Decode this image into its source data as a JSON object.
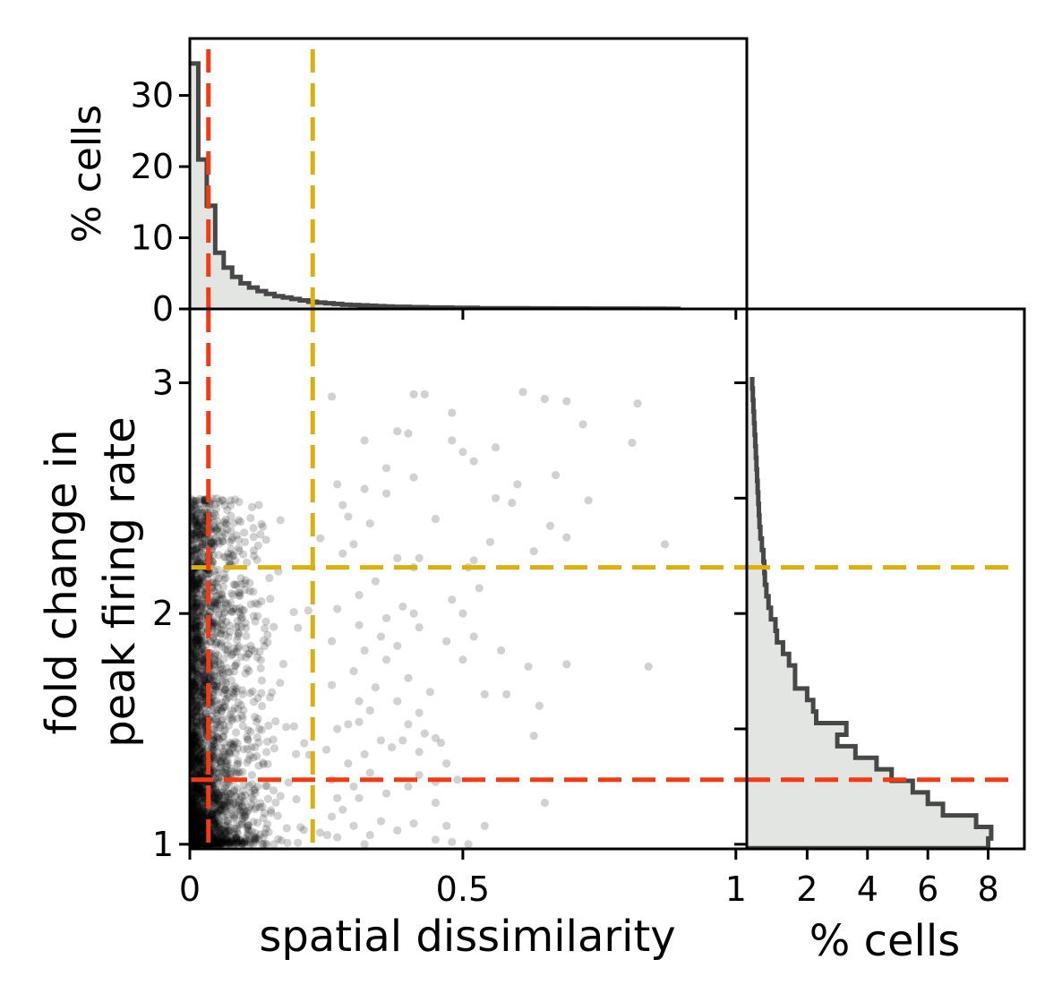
{
  "chart_data": {
    "type": "scatter",
    "main": {
      "xlabel": "spatial dissimilarity",
      "ylabel_lines": [
        "fold change in",
        "peak firing rate"
      ],
      "xlim": [
        0,
        1.02
      ],
      "ylim": [
        0.98,
        3.32
      ],
      "x_ticks": [
        0,
        0.5,
        1
      ],
      "x_tick_labels": [
        "0",
        "0.5",
        "1"
      ],
      "y_ticks": [
        1,
        2,
        3
      ],
      "y_tick_labels": [
        "1",
        "2",
        "3"
      ],
      "point_color": "#000000",
      "point_opacity": 0.18,
      "points": [
        [
          0.43,
          2.95
        ],
        [
          0.41,
          2.95
        ],
        [
          0.26,
          2.94
        ],
        [
          0.61,
          2.96
        ],
        [
          0.65,
          2.93
        ],
        [
          0.69,
          2.92
        ],
        [
          0.82,
          2.91
        ],
        [
          0.48,
          2.87
        ],
        [
          0.72,
          2.82
        ],
        [
          0.38,
          2.79
        ],
        [
          0.32,
          2.75
        ],
        [
          0.48,
          2.75
        ],
        [
          0.81,
          2.74
        ],
        [
          0.56,
          2.72
        ],
        [
          0.5,
          2.7
        ],
        [
          0.4,
          2.78
        ],
        [
          0.52,
          2.66
        ],
        [
          0.36,
          2.63
        ],
        [
          0.67,
          2.6
        ],
        [
          0.27,
          2.56
        ],
        [
          0.41,
          2.59
        ],
        [
          0.6,
          2.56
        ],
        [
          0.32,
          2.54
        ],
        [
          0.36,
          2.52
        ],
        [
          0.28,
          2.47
        ],
        [
          0.56,
          2.5
        ],
        [
          0.59,
          2.48
        ],
        [
          0.69,
          2.33
        ],
        [
          0.66,
          2.38
        ],
        [
          0.73,
          2.49
        ],
        [
          0.29,
          2.42
        ],
        [
          0.45,
          2.41
        ],
        [
          0.33,
          2.39
        ],
        [
          0.55,
          2.31
        ],
        [
          0.63,
          2.27
        ],
        [
          0.87,
          2.3
        ],
        [
          0.38,
          2.24
        ],
        [
          0.41,
          2.2
        ],
        [
          0.42,
          2.24
        ],
        [
          0.51,
          2.2
        ],
        [
          0.52,
          2.23
        ],
        [
          0.48,
          2.06
        ],
        [
          0.53,
          2.11
        ],
        [
          0.31,
          2.08
        ],
        [
          0.39,
          2.03
        ],
        [
          0.41,
          2.0
        ],
        [
          0.5,
          2.0
        ],
        [
          0.42,
          1.94
        ],
        [
          0.52,
          1.9
        ],
        [
          0.47,
          1.88
        ],
        [
          0.31,
          1.95
        ],
        [
          0.35,
          1.9
        ],
        [
          0.38,
          1.86
        ],
        [
          0.32,
          1.84
        ],
        [
          0.36,
          1.8
        ],
        [
          0.5,
          1.8
        ],
        [
          0.57,
          1.84
        ],
        [
          0.62,
          1.77
        ],
        [
          0.69,
          1.78
        ],
        [
          0.84,
          1.77
        ],
        [
          0.3,
          1.75
        ],
        [
          0.34,
          1.68
        ],
        [
          0.31,
          1.62
        ],
        [
          0.38,
          1.62
        ],
        [
          0.42,
          1.57
        ],
        [
          0.54,
          1.65
        ],
        [
          0.58,
          1.65
        ],
        [
          0.64,
          1.6
        ],
        [
          0.4,
          1.52
        ],
        [
          0.31,
          1.53
        ],
        [
          0.35,
          1.45
        ],
        [
          0.27,
          1.5
        ],
        [
          0.43,
          1.48
        ],
        [
          0.39,
          1.45
        ],
        [
          0.45,
          1.46
        ],
        [
          0.46,
          1.44
        ],
        [
          0.42,
          1.4
        ],
        [
          0.63,
          1.47
        ],
        [
          0.29,
          1.35
        ],
        [
          0.33,
          1.31
        ],
        [
          0.42,
          1.3
        ],
        [
          0.47,
          1.35
        ],
        [
          0.45,
          1.27
        ],
        [
          0.49,
          1.28
        ],
        [
          0.36,
          1.22
        ],
        [
          0.4,
          1.25
        ],
        [
          0.31,
          1.2
        ],
        [
          0.45,
          1.18
        ],
        [
          0.28,
          1.15
        ],
        [
          0.35,
          1.1
        ],
        [
          0.3,
          1.08
        ],
        [
          0.38,
          1.06
        ],
        [
          0.47,
          1.08
        ],
        [
          0.54,
          1.08
        ],
        [
          0.65,
          1.18
        ],
        [
          0.33,
          1.04
        ],
        [
          0.45,
          1.02
        ],
        [
          0.48,
          1.01
        ],
        [
          0.51,
          1.0
        ],
        [
          0.32,
          1.0
        ],
        [
          0.41,
          1.09
        ],
        [
          0.27,
          1.03
        ],
        [
          0.29,
          1.52
        ],
        [
          0.33,
          1.58
        ],
        [
          0.37,
          1.42
        ],
        [
          0.26,
          1.88
        ],
        [
          0.27,
          2.02
        ],
        [
          0.28,
          2.26
        ],
        [
          0.3,
          2.3
        ],
        [
          0.34,
          2.14
        ],
        [
          0.36,
          1.98
        ],
        [
          0.26,
          1.69
        ],
        [
          0.4,
          1.72
        ],
        [
          0.44,
          1.66
        ],
        [
          0.25,
          1.41
        ],
        [
          0.26,
          1.28
        ],
        [
          0.27,
          1.2
        ],
        [
          0.3,
          1.25
        ],
        [
          0.32,
          1.39
        ],
        [
          0.26,
          1.12
        ]
      ],
      "dense_cloud": {
        "n_points": 2600,
        "x_spread": 0.075,
        "y_min": 1.0,
        "y_max": 2.5
      },
      "hlines": [
        {
          "y": 2.2,
          "color": "#dcb00c"
        },
        {
          "y": 1.28,
          "color": "#f53a13"
        }
      ],
      "vlines": [
        {
          "x": 0.034,
          "color": "#f53a13"
        },
        {
          "x": 0.225,
          "color": "#dcb00c"
        }
      ]
    },
    "top_histogram": {
      "type": "bar",
      "ylabel": "% cells",
      "ylim": [
        0,
        38
      ],
      "y_ticks": [
        0,
        10,
        20,
        30
      ],
      "y_tick_labels": [
        "0",
        "10",
        "20",
        "30"
      ],
      "bin_width": 0.0155,
      "values": [
        34.5,
        21.0,
        14.5,
        7.9,
        5.8,
        4.5,
        3.6,
        3.0,
        2.5,
        2.1,
        1.8,
        1.6,
        1.4,
        1.2,
        1.0,
        0.9,
        0.8,
        0.7,
        0.6,
        0.55,
        0.5,
        0.45,
        0.4,
        0.35,
        0.3,
        0.3,
        0.25,
        0.25,
        0.2,
        0.2,
        0.2,
        0.15,
        0.15,
        0.15,
        0.1,
        0.1,
        0.1,
        0.1,
        0.1,
        0.1,
        0.08,
        0.08,
        0.08,
        0.07,
        0.07,
        0.06,
        0.06,
        0.05,
        0.05,
        0.05,
        0.04,
        0.04,
        0.04,
        0.03,
        0.03,
        0.03,
        0.02,
        0.02
      ],
      "fill": "#e3e5e2",
      "edge": "#474747"
    },
    "right_histogram": {
      "type": "bar",
      "orientation": "horizontal",
      "xlabel": "% cells",
      "xlim": [
        0,
        9.2
      ],
      "x_ticks": [
        2,
        4,
        6,
        8
      ],
      "x_tick_labels": [
        "2",
        "4",
        "6",
        "8"
      ],
      "bin_start": 0.975,
      "bin_width": 0.05,
      "values": [
        8.0,
        8.1,
        7.6,
        6.5,
        6.0,
        5.5,
        4.8,
        4.3,
        3.6,
        3.0,
        3.3,
        2.3,
        2.2,
        2.0,
        1.6,
        1.6,
        1.4,
        1.2,
        1.0,
        0.95,
        0.8,
        0.72,
        0.65,
        0.6,
        0.58,
        0.55,
        0.5,
        0.45,
        0.42,
        0.4,
        0.38,
        0.36,
        0.34,
        0.32,
        0.3,
        0.28,
        0.26,
        0.24,
        0.22,
        0.2,
        0.18
      ],
      "fill": "#e3e5e2",
      "edge": "#474747"
    }
  }
}
